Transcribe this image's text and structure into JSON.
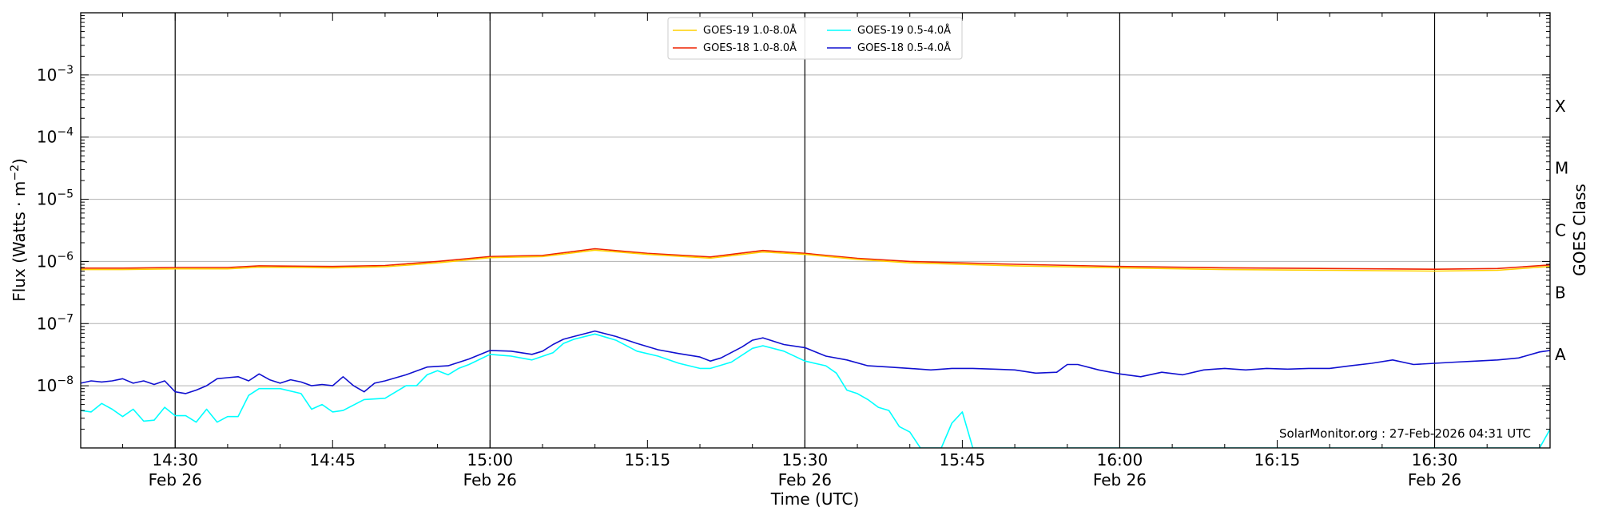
{
  "chart_data": {
    "type": "line",
    "xlabel": "Time (UTC)",
    "ylabel": "Flux (Watts · m",
    "ylabel_sup": "−2",
    "ylabel_close": ")",
    "right_label": "GOES Class",
    "yscale": "log",
    "xlim": [
      "14:21",
      "16:41"
    ],
    "ylim": [
      1e-09,
      0.01
    ],
    "grid": "horizontal",
    "legend_position": "top-center",
    "credit": "SolarMonitor.org : 27-Feb-2026 04:31 UTC",
    "x_ticks": [
      {
        "value": "14:30",
        "label": "14:30",
        "date": "Feb 26",
        "major": true
      },
      {
        "value": "14:45",
        "label": "14:45",
        "date": "",
        "major": false
      },
      {
        "value": "15:00",
        "label": "15:00",
        "date": "Feb 26",
        "major": true
      },
      {
        "value": "15:15",
        "label": "15:15",
        "date": "",
        "major": false
      },
      {
        "value": "15:30",
        "label": "15:30",
        "date": "Feb 26",
        "major": true
      },
      {
        "value": "15:45",
        "label": "15:45",
        "date": "",
        "major": false
      },
      {
        "value": "16:00",
        "label": "16:00",
        "date": "Feb 26",
        "major": true
      },
      {
        "value": "16:15",
        "label": "16:15",
        "date": "",
        "major": false
      },
      {
        "value": "16:30",
        "label": "16:30",
        "date": "Feb 26",
        "major": true
      }
    ],
    "y_ticks": [
      {
        "value": 1e-08,
        "base": "10",
        "exp": "−8"
      },
      {
        "value": 1e-07,
        "base": "10",
        "exp": "−7"
      },
      {
        "value": 1e-06,
        "base": "10",
        "exp": "−6"
      },
      {
        "value": 1e-05,
        "base": "10",
        "exp": "−5"
      },
      {
        "value": 0.0001,
        "base": "10",
        "exp": "−4"
      },
      {
        "value": 0.001,
        "base": "10",
        "exp": "−3"
      }
    ],
    "goes_classes": [
      {
        "label": "A",
        "value": 3.16e-08
      },
      {
        "label": "B",
        "value": 3.16e-07
      },
      {
        "label": "C",
        "value": 3.16e-06
      },
      {
        "label": "M",
        "value": 3.16e-05
      },
      {
        "label": "X",
        "value": 0.000316
      }
    ],
    "colors": {
      "goes19_long": "#ffd000",
      "goes18_long": "#ee2200",
      "goes19_short": "#00ffff",
      "goes18_short": "#1010d0"
    },
    "series": [
      {
        "name": "GOES-19 1.0-8.0Å",
        "color_key": "goes19_long",
        "points": [
          [
            "14:21",
            7.4e-07
          ],
          [
            "14:25",
            7.4e-07
          ],
          [
            "14:30",
            7.6e-07
          ],
          [
            "14:35",
            7.6e-07
          ],
          [
            "14:38",
            8.1e-07
          ],
          [
            "14:45",
            7.9e-07
          ],
          [
            "14:50",
            8.2e-07
          ],
          [
            "14:55",
            9.5e-07
          ],
          [
            "15:00",
            1.15e-06
          ],
          [
            "15:05",
            1.2e-06
          ],
          [
            "15:10",
            1.52e-06
          ],
          [
            "15:15",
            1.3e-06
          ],
          [
            "15:21",
            1.13e-06
          ],
          [
            "15:26",
            1.42e-06
          ],
          [
            "15:30",
            1.3e-06
          ],
          [
            "15:35",
            1.08e-06
          ],
          [
            "15:40",
            9.5e-07
          ],
          [
            "15:50",
            8.5e-07
          ],
          [
            "16:00",
            7.9e-07
          ],
          [
            "16:10",
            7.4e-07
          ],
          [
            "16:20",
            7.2e-07
          ],
          [
            "16:30",
            7e-07
          ],
          [
            "16:36",
            7.2e-07
          ],
          [
            "16:41",
            8.3e-07
          ]
        ]
      },
      {
        "name": "GOES-18 1.0-8.0Å",
        "color_key": "goes18_long",
        "points": [
          [
            "14:21",
            7.8e-07
          ],
          [
            "14:25",
            7.8e-07
          ],
          [
            "14:30",
            8e-07
          ],
          [
            "14:35",
            8e-07
          ],
          [
            "14:38",
            8.5e-07
          ],
          [
            "14:45",
            8.3e-07
          ],
          [
            "14:50",
            8.6e-07
          ],
          [
            "14:55",
            1e-06
          ],
          [
            "15:00",
            1.2e-06
          ],
          [
            "15:05",
            1.25e-06
          ],
          [
            "15:10",
            1.6e-06
          ],
          [
            "15:15",
            1.35e-06
          ],
          [
            "15:21",
            1.18e-06
          ],
          [
            "15:26",
            1.5e-06
          ],
          [
            "15:30",
            1.35e-06
          ],
          [
            "15:35",
            1.12e-06
          ],
          [
            "15:40",
            1e-06
          ],
          [
            "15:50",
            9e-07
          ],
          [
            "16:00",
            8.3e-07
          ],
          [
            "16:10",
            7.9e-07
          ],
          [
            "16:20",
            7.7e-07
          ],
          [
            "16:30",
            7.5e-07
          ],
          [
            "16:36",
            7.7e-07
          ],
          [
            "16:41",
            8.8e-07
          ]
        ]
      },
      {
        "name": "GOES-19 0.5-4.0Å",
        "color_key": "goes19_short",
        "points": [
          [
            "14:21",
            4e-09
          ],
          [
            "14:22",
            3.8e-09
          ],
          [
            "14:23",
            5.2e-09
          ],
          [
            "14:24",
            4.2e-09
          ],
          [
            "14:25",
            3.2e-09
          ],
          [
            "14:26",
            4.2e-09
          ],
          [
            "14:27",
            2.7e-09
          ],
          [
            "14:28",
            2.8e-09
          ],
          [
            "14:29",
            4.5e-09
          ],
          [
            "14:30",
            3.3e-09
          ],
          [
            "14:31",
            3.3e-09
          ],
          [
            "14:32",
            2.6e-09
          ],
          [
            "14:33",
            4.2e-09
          ],
          [
            "14:34",
            2.6e-09
          ],
          [
            "14:35",
            3.2e-09
          ],
          [
            "14:36",
            3.2e-09
          ],
          [
            "14:37",
            7e-09
          ],
          [
            "14:38",
            9e-09
          ],
          [
            "14:40",
            9e-09
          ],
          [
            "14:42",
            7.5e-09
          ],
          [
            "14:43",
            4.2e-09
          ],
          [
            "14:44",
            5e-09
          ],
          [
            "14:45",
            3.8e-09
          ],
          [
            "14:46",
            4e-09
          ],
          [
            "14:48",
            6e-09
          ],
          [
            "14:50",
            6.3e-09
          ],
          [
            "14:52",
            1e-08
          ],
          [
            "14:53",
            1e-08
          ],
          [
            "14:54",
            1.5e-08
          ],
          [
            "14:55",
            1.75e-08
          ],
          [
            "14:56",
            1.5e-08
          ],
          [
            "14:57",
            1.9e-08
          ],
          [
            "14:58",
            2.2e-08
          ],
          [
            "15:00",
            3.2e-08
          ],
          [
            "15:02",
            3e-08
          ],
          [
            "15:04",
            2.6e-08
          ],
          [
            "15:06",
            3.4e-08
          ],
          [
            "15:07",
            4.8e-08
          ],
          [
            "15:08",
            5.6e-08
          ],
          [
            "15:10",
            6.8e-08
          ],
          [
            "15:12",
            5.4e-08
          ],
          [
            "15:14",
            3.6e-08
          ],
          [
            "15:16",
            3e-08
          ],
          [
            "15:18",
            2.3e-08
          ],
          [
            "15:20",
            1.9e-08
          ],
          [
            "15:21",
            1.9e-08
          ],
          [
            "15:23",
            2.4e-08
          ],
          [
            "15:25",
            4e-08
          ],
          [
            "15:26",
            4.4e-08
          ],
          [
            "15:28",
            3.6e-08
          ],
          [
            "15:30",
            2.5e-08
          ],
          [
            "15:32",
            2.1e-08
          ],
          [
            "15:33",
            1.6e-08
          ],
          [
            "15:34",
            8.5e-09
          ],
          [
            "15:35",
            7.5e-09
          ],
          [
            "15:36",
            6e-09
          ],
          [
            "15:37",
            4.5e-09
          ],
          [
            "15:38",
            4e-09
          ],
          [
            "15:39",
            2.2e-09
          ],
          [
            "15:40",
            1.8e-09
          ],
          [
            "15:41",
            1e-09
          ],
          [
            "15:43",
            1e-09
          ],
          [
            "15:44",
            2.5e-09
          ],
          [
            "15:45",
            3.8e-09
          ],
          [
            "15:46",
            1e-09
          ],
          [
            "16:40",
            1e-09
          ],
          [
            "16:41",
            2e-09
          ]
        ]
      },
      {
        "name": "GOES-18 0.5-4.0Å",
        "color_key": "goes18_short",
        "points": [
          [
            "14:21",
            1.1e-08
          ],
          [
            "14:22",
            1.2e-08
          ],
          [
            "14:23",
            1.15e-08
          ],
          [
            "14:24",
            1.2e-08
          ],
          [
            "14:25",
            1.3e-08
          ],
          [
            "14:26",
            1.1e-08
          ],
          [
            "14:27",
            1.2e-08
          ],
          [
            "14:28",
            1.05e-08
          ],
          [
            "14:29",
            1.2e-08
          ],
          [
            "14:30",
            8e-09
          ],
          [
            "14:31",
            7.5e-09
          ],
          [
            "14:32",
            8.5e-09
          ],
          [
            "14:33",
            1e-08
          ],
          [
            "14:34",
            1.3e-08
          ],
          [
            "14:35",
            1.35e-08
          ],
          [
            "14:36",
            1.4e-08
          ],
          [
            "14:37",
            1.2e-08
          ],
          [
            "14:38",
            1.55e-08
          ],
          [
            "14:39",
            1.25e-08
          ],
          [
            "14:40",
            1.1e-08
          ],
          [
            "14:41",
            1.25e-08
          ],
          [
            "14:42",
            1.15e-08
          ],
          [
            "14:43",
            1e-08
          ],
          [
            "14:44",
            1.05e-08
          ],
          [
            "14:45",
            1e-08
          ],
          [
            "14:46",
            1.4e-08
          ],
          [
            "14:47",
            1e-08
          ],
          [
            "14:48",
            8e-09
          ],
          [
            "14:49",
            1.1e-08
          ],
          [
            "14:50",
            1.2e-08
          ],
          [
            "14:52",
            1.5e-08
          ],
          [
            "14:54",
            2e-08
          ],
          [
            "14:56",
            2.1e-08
          ],
          [
            "14:58",
            2.7e-08
          ],
          [
            "15:00",
            3.7e-08
          ],
          [
            "15:02",
            3.6e-08
          ],
          [
            "15:04",
            3.2e-08
          ],
          [
            "15:05",
            3.6e-08
          ],
          [
            "15:06",
            4.6e-08
          ],
          [
            "15:07",
            5.6e-08
          ],
          [
            "15:08",
            6.2e-08
          ],
          [
            "15:10",
            7.6e-08
          ],
          [
            "15:12",
            6.2e-08
          ],
          [
            "15:14",
            4.8e-08
          ],
          [
            "15:16",
            3.8e-08
          ],
          [
            "15:18",
            3.3e-08
          ],
          [
            "15:20",
            2.9e-08
          ],
          [
            "15:21",
            2.5e-08
          ],
          [
            "15:22",
            2.8e-08
          ],
          [
            "15:24",
            4.2e-08
          ],
          [
            "15:25",
            5.4e-08
          ],
          [
            "15:26",
            5.9e-08
          ],
          [
            "15:28",
            4.6e-08
          ],
          [
            "15:30",
            4.1e-08
          ],
          [
            "15:32",
            3e-08
          ],
          [
            "15:34",
            2.6e-08
          ],
          [
            "15:36",
            2.1e-08
          ],
          [
            "15:38",
            2e-08
          ],
          [
            "15:40",
            1.9e-08
          ],
          [
            "15:42",
            1.8e-08
          ],
          [
            "15:44",
            1.9e-08
          ],
          [
            "15:46",
            1.9e-08
          ],
          [
            "15:48",
            1.85e-08
          ],
          [
            "15:50",
            1.8e-08
          ],
          [
            "15:52",
            1.6e-08
          ],
          [
            "15:54",
            1.65e-08
          ],
          [
            "15:55",
            2.2e-08
          ],
          [
            "15:56",
            2.2e-08
          ],
          [
            "15:58",
            1.8e-08
          ],
          [
            "16:00",
            1.55e-08
          ],
          [
            "16:02",
            1.4e-08
          ],
          [
            "16:04",
            1.65e-08
          ],
          [
            "16:06",
            1.5e-08
          ],
          [
            "16:08",
            1.8e-08
          ],
          [
            "16:10",
            1.9e-08
          ],
          [
            "16:12",
            1.8e-08
          ],
          [
            "16:14",
            1.9e-08
          ],
          [
            "16:16",
            1.85e-08
          ],
          [
            "16:18",
            1.9e-08
          ],
          [
            "16:20",
            1.9e-08
          ],
          [
            "16:22",
            2.1e-08
          ],
          [
            "16:24",
            2.3e-08
          ],
          [
            "16:26",
            2.6e-08
          ],
          [
            "16:28",
            2.2e-08
          ],
          [
            "16:30",
            2.3e-08
          ],
          [
            "16:32",
            2.4e-08
          ],
          [
            "16:34",
            2.5e-08
          ],
          [
            "16:36",
            2.6e-08
          ],
          [
            "16:38",
            2.8e-08
          ],
          [
            "16:40",
            3.5e-08
          ],
          [
            "16:41",
            3.7e-08
          ]
        ]
      }
    ]
  }
}
